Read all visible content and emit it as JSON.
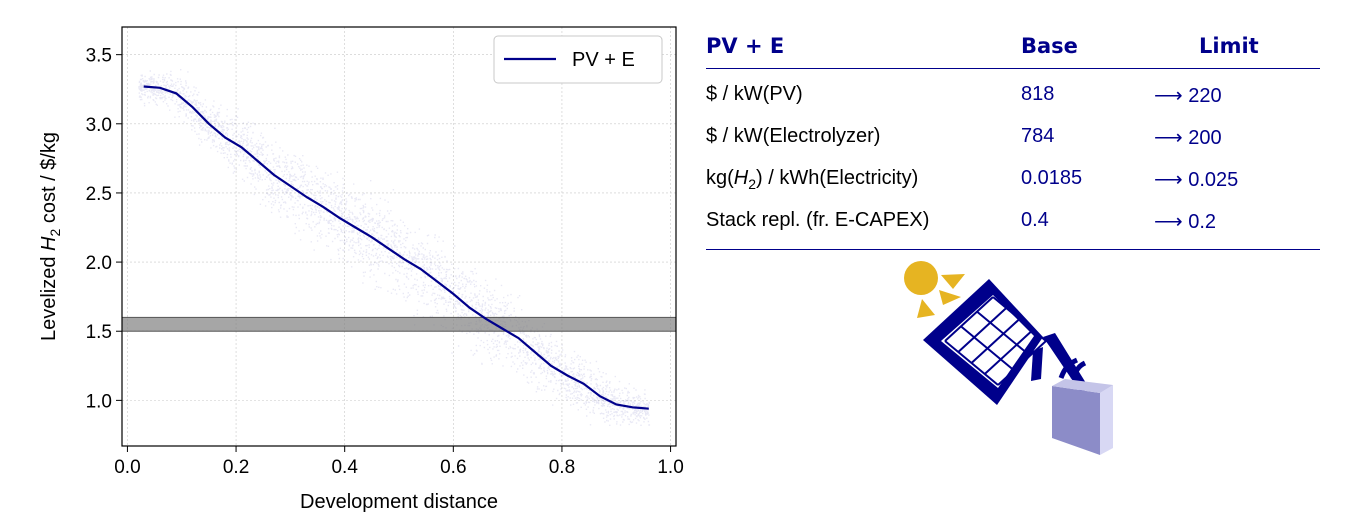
{
  "chart_data": {
    "type": "line",
    "title": "",
    "xlabel": "Development distance",
    "ylabel_prefix": "Levelized ",
    "ylabel_symbol": "H",
    "ylabel_subscript": "2",
    "ylabel_suffix": " cost / $/kg",
    "xlim": [
      -0.01,
      1.01
    ],
    "ylim": [
      0.67,
      3.7
    ],
    "xticks": [
      "0.0",
      "0.2",
      "0.4",
      "0.6",
      "0.8",
      "1.0"
    ],
    "yticks": [
      "1.0",
      "1.5",
      "2.0",
      "2.5",
      "3.0",
      "3.5"
    ],
    "grid": true,
    "legend": {
      "location": "upper right",
      "entries": [
        "PV + E"
      ]
    },
    "series": [
      {
        "name": "PV + E",
        "color": "#00008b",
        "x": [
          0.03,
          0.06,
          0.09,
          0.12,
          0.15,
          0.18,
          0.21,
          0.24,
          0.27,
          0.3,
          0.33,
          0.36,
          0.39,
          0.42,
          0.45,
          0.48,
          0.51,
          0.54,
          0.57,
          0.6,
          0.63,
          0.66,
          0.69,
          0.72,
          0.75,
          0.78,
          0.81,
          0.84,
          0.87,
          0.9,
          0.93,
          0.96
        ],
        "y": [
          3.27,
          3.26,
          3.22,
          3.12,
          3.0,
          2.9,
          2.83,
          2.73,
          2.63,
          2.55,
          2.47,
          2.4,
          2.32,
          2.25,
          2.18,
          2.1,
          2.02,
          1.95,
          1.86,
          1.77,
          1.67,
          1.59,
          1.52,
          1.45,
          1.35,
          1.25,
          1.18,
          1.12,
          1.03,
          0.97,
          0.95,
          0.94
        ]
      }
    ],
    "scatter_cloud": {
      "color": "#00008b",
      "description_x_range": [
        0.02,
        0.96
      ],
      "spread_y": 0.4
    },
    "target_band": {
      "y_range": [
        1.5,
        1.6
      ],
      "color": "#808080"
    }
  },
  "table": {
    "headers": [
      "PV + E",
      "Base",
      "Limit"
    ],
    "rows": [
      {
        "param_pre": "$ / kW(PV)",
        "base": "818",
        "limit": "⟶ 220"
      },
      {
        "param_pre": "$ / kW(Electrolyzer)",
        "base": "784",
        "limit": "⟶ 200"
      },
      {
        "param_pre": "kg(",
        "param_sym": "H",
        "param_sub": "2",
        "param_post": ") / kWh(Electricity)",
        "base": "0.0185",
        "limit": "⟶ 0.025"
      },
      {
        "param_pre": "Stack repl. (fr. E-CAPEX)",
        "base": "0.4",
        "limit": "⟶ 0.2"
      }
    ]
  },
  "illustration": {
    "sun_color": "#e6b422",
    "panel_color": "#00008b",
    "tank_color": "#8c8cc8"
  }
}
